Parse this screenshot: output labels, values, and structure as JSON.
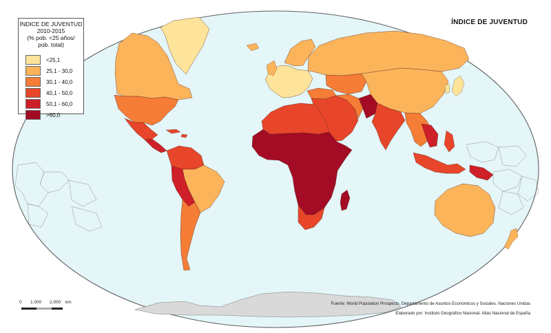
{
  "map": {
    "title": "ÍNDICE DE JUVENTUD",
    "legend": {
      "title": "ÍNDICE DE JUVENTUD\n2010-2015",
      "subtitle": "(% pob. <25 años/\npob. total)",
      "items": [
        {
          "label": "<25,1",
          "color": "#fde49a"
        },
        {
          "label": "25,1 - 30,0",
          "color": "#fcb45b"
        },
        {
          "label": "30,1 - 40,0",
          "color": "#f57d36"
        },
        {
          "label": "40,1 - 50,0",
          "color": "#e8462a"
        },
        {
          "label": "50,1 - 60,0",
          "color": "#cf1f28"
        },
        {
          "label": ">60,0",
          "color": "#a30c24"
        }
      ]
    },
    "scale": {
      "ticks": [
        "0",
        "1.000",
        "2.000",
        "km"
      ]
    },
    "source": "Fuente: World Population Prospects. Departamento de Asuntos Económicos y Sociales. Naciones Unidas",
    "credit": "Elaborado por: Instituto Geográfico Nacional. Atlas Nacional de España",
    "colors": {
      "ocean": "#e4f6f8",
      "frame": "#5f5f5f",
      "land_nodata": "#d9d9d9",
      "border": "#5b2a1d"
    }
  }
}
